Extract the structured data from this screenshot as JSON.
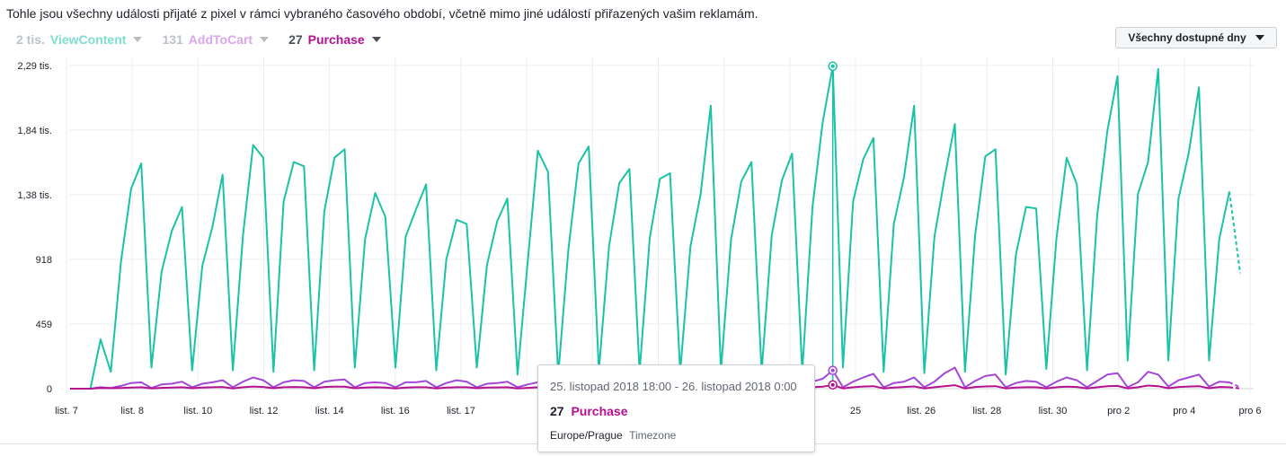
{
  "description": "Tohle jsou všechny události přijaté z pixel v rámci vybraného časového období, včetně mimo jiné událostí přiřazených vašim reklamám.",
  "legend": [
    {
      "count": "2 tis.",
      "name": "ViewContent",
      "color": "#7fdcd0",
      "count_color": "#bec3c9"
    },
    {
      "count": "131",
      "name": "AddToCart",
      "color": "#d9a6ec",
      "count_color": "#bec3c9"
    },
    {
      "count": "27",
      "name": "Purchase",
      "color": "#b5118f",
      "count_color": "#4b4f56"
    }
  ],
  "range_button": {
    "label": "Všechny dostupné dny"
  },
  "tooltip": {
    "date": "25. listopad 2018 18:00 - 26. listopad 2018 0:00",
    "value": "27",
    "event": "Purchase",
    "timezone": "Europe/Prague",
    "timezone_label": "Timezone"
  },
  "chart_data": {
    "type": "line",
    "y_ticks": [
      "0",
      "459",
      "918",
      "1,38 tis.",
      "1,84 tis.",
      "2,29 tis."
    ],
    "y_tick_values": [
      0,
      459,
      918,
      1377,
      1836,
      2295
    ],
    "ylim": [
      0,
      2295
    ],
    "x_tick_labels": [
      "list. 7",
      "list. 8",
      "list. 10",
      "list. 12",
      "list. 14",
      "list. 16",
      "list. 17",
      "",
      "",
      "",
      "",
      "",
      "25",
      "list. 26",
      "list. 28",
      "list. 30",
      "pro 2",
      "pro 4",
      "pro 6"
    ],
    "x_tick_positions": [
      0,
      3.4,
      6.8,
      10.2,
      13.6,
      17.0,
      20.4,
      23.8,
      27.2,
      30.6,
      34.0,
      37.4,
      40.8,
      44.2,
      47.6,
      51.0,
      54.4,
      57.8,
      61.2
    ],
    "grid": true,
    "series": [
      {
        "name": "ViewContent",
        "color": "#1ac3a5",
        "values": [
          0,
          0,
          0,
          350,
          120,
          900,
          1420,
          1600,
          150,
          830,
          1120,
          1290,
          130,
          870,
          1150,
          1520,
          130,
          1090,
          1730,
          1640,
          120,
          1330,
          1610,
          1580,
          130,
          1260,
          1640,
          1700,
          150,
          1060,
          1390,
          1220,
          150,
          1080,
          1270,
          1450,
          130,
          920,
          1200,
          1170,
          150,
          880,
          1190,
          1350,
          100,
          900,
          1690,
          1540,
          100,
          990,
          1600,
          1720,
          130,
          1010,
          1460,
          1560,
          120,
          1070,
          1490,
          1530,
          120,
          1010,
          1380,
          2010,
          130,
          1060,
          1470,
          1610,
          120,
          1090,
          1480,
          1670,
          120,
          1290,
          1890,
          2290,
          150,
          1330,
          1630,
          1780,
          120,
          1170,
          1500,
          2010,
          110,
          1080,
          1500,
          1880,
          120,
          1090,
          1650,
          1700,
          100,
          950,
          1290,
          1280,
          140,
          1070,
          1640,
          1450,
          130,
          1230,
          1830,
          2220,
          200,
          1380,
          1610,
          2270,
          200,
          1350,
          1670,
          2140,
          200,
          1060,
          1400
        ],
        "dashed_tail": [
          1400,
          820
        ]
      },
      {
        "name": "AddToCart",
        "color": "#a347d6",
        "values": [
          0,
          0,
          0,
          10,
          5,
          20,
          40,
          45,
          5,
          30,
          35,
          50,
          10,
          35,
          45,
          60,
          10,
          50,
          80,
          60,
          10,
          45,
          60,
          55,
          10,
          50,
          60,
          65,
          10,
          40,
          45,
          40,
          10,
          45,
          45,
          55,
          10,
          40,
          60,
          50,
          10,
          35,
          40,
          50,
          10,
          30,
          45,
          40,
          5,
          30,
          40,
          60,
          10,
          30,
          40,
          55,
          10,
          35,
          45,
          50,
          10,
          40,
          50,
          70,
          10,
          40,
          55,
          60,
          10,
          40,
          60,
          70,
          10,
          50,
          70,
          130,
          10,
          50,
          80,
          105,
          10,
          40,
          50,
          80,
          10,
          50,
          110,
          150,
          10,
          55,
          90,
          100,
          10,
          40,
          55,
          50,
          10,
          50,
          80,
          60,
          10,
          55,
          100,
          110,
          10,
          45,
          120,
          100,
          15,
          60,
          80,
          100,
          15,
          50,
          45
        ],
        "dashed_tail": [
          45,
          10
        ]
      },
      {
        "name": "Purchase",
        "color": "#b5118f",
        "values": [
          0,
          0,
          0,
          5,
          3,
          5,
          8,
          10,
          2,
          6,
          8,
          10,
          3,
          8,
          10,
          12,
          2,
          10,
          15,
          12,
          3,
          10,
          12,
          10,
          3,
          12,
          14,
          14,
          3,
          8,
          10,
          8,
          2,
          8,
          10,
          10,
          2,
          8,
          10,
          10,
          3,
          8,
          9,
          10,
          2,
          6,
          10,
          8,
          2,
          6,
          9,
          12,
          2,
          6,
          8,
          10,
          2,
          8,
          10,
          10,
          2,
          8,
          10,
          12,
          2,
          8,
          10,
          12,
          2,
          8,
          12,
          14,
          2,
          10,
          14,
          27,
          2,
          10,
          15,
          18,
          2,
          8,
          12,
          16,
          2,
          10,
          18,
          25,
          2,
          12,
          16,
          18,
          2,
          8,
          10,
          10,
          2,
          10,
          14,
          12,
          2,
          10,
          18,
          20,
          2,
          10,
          22,
          18,
          3,
          12,
          15,
          18,
          3,
          12,
          10
        ],
        "dashed_tail": [
          10,
          2
        ]
      }
    ]
  }
}
